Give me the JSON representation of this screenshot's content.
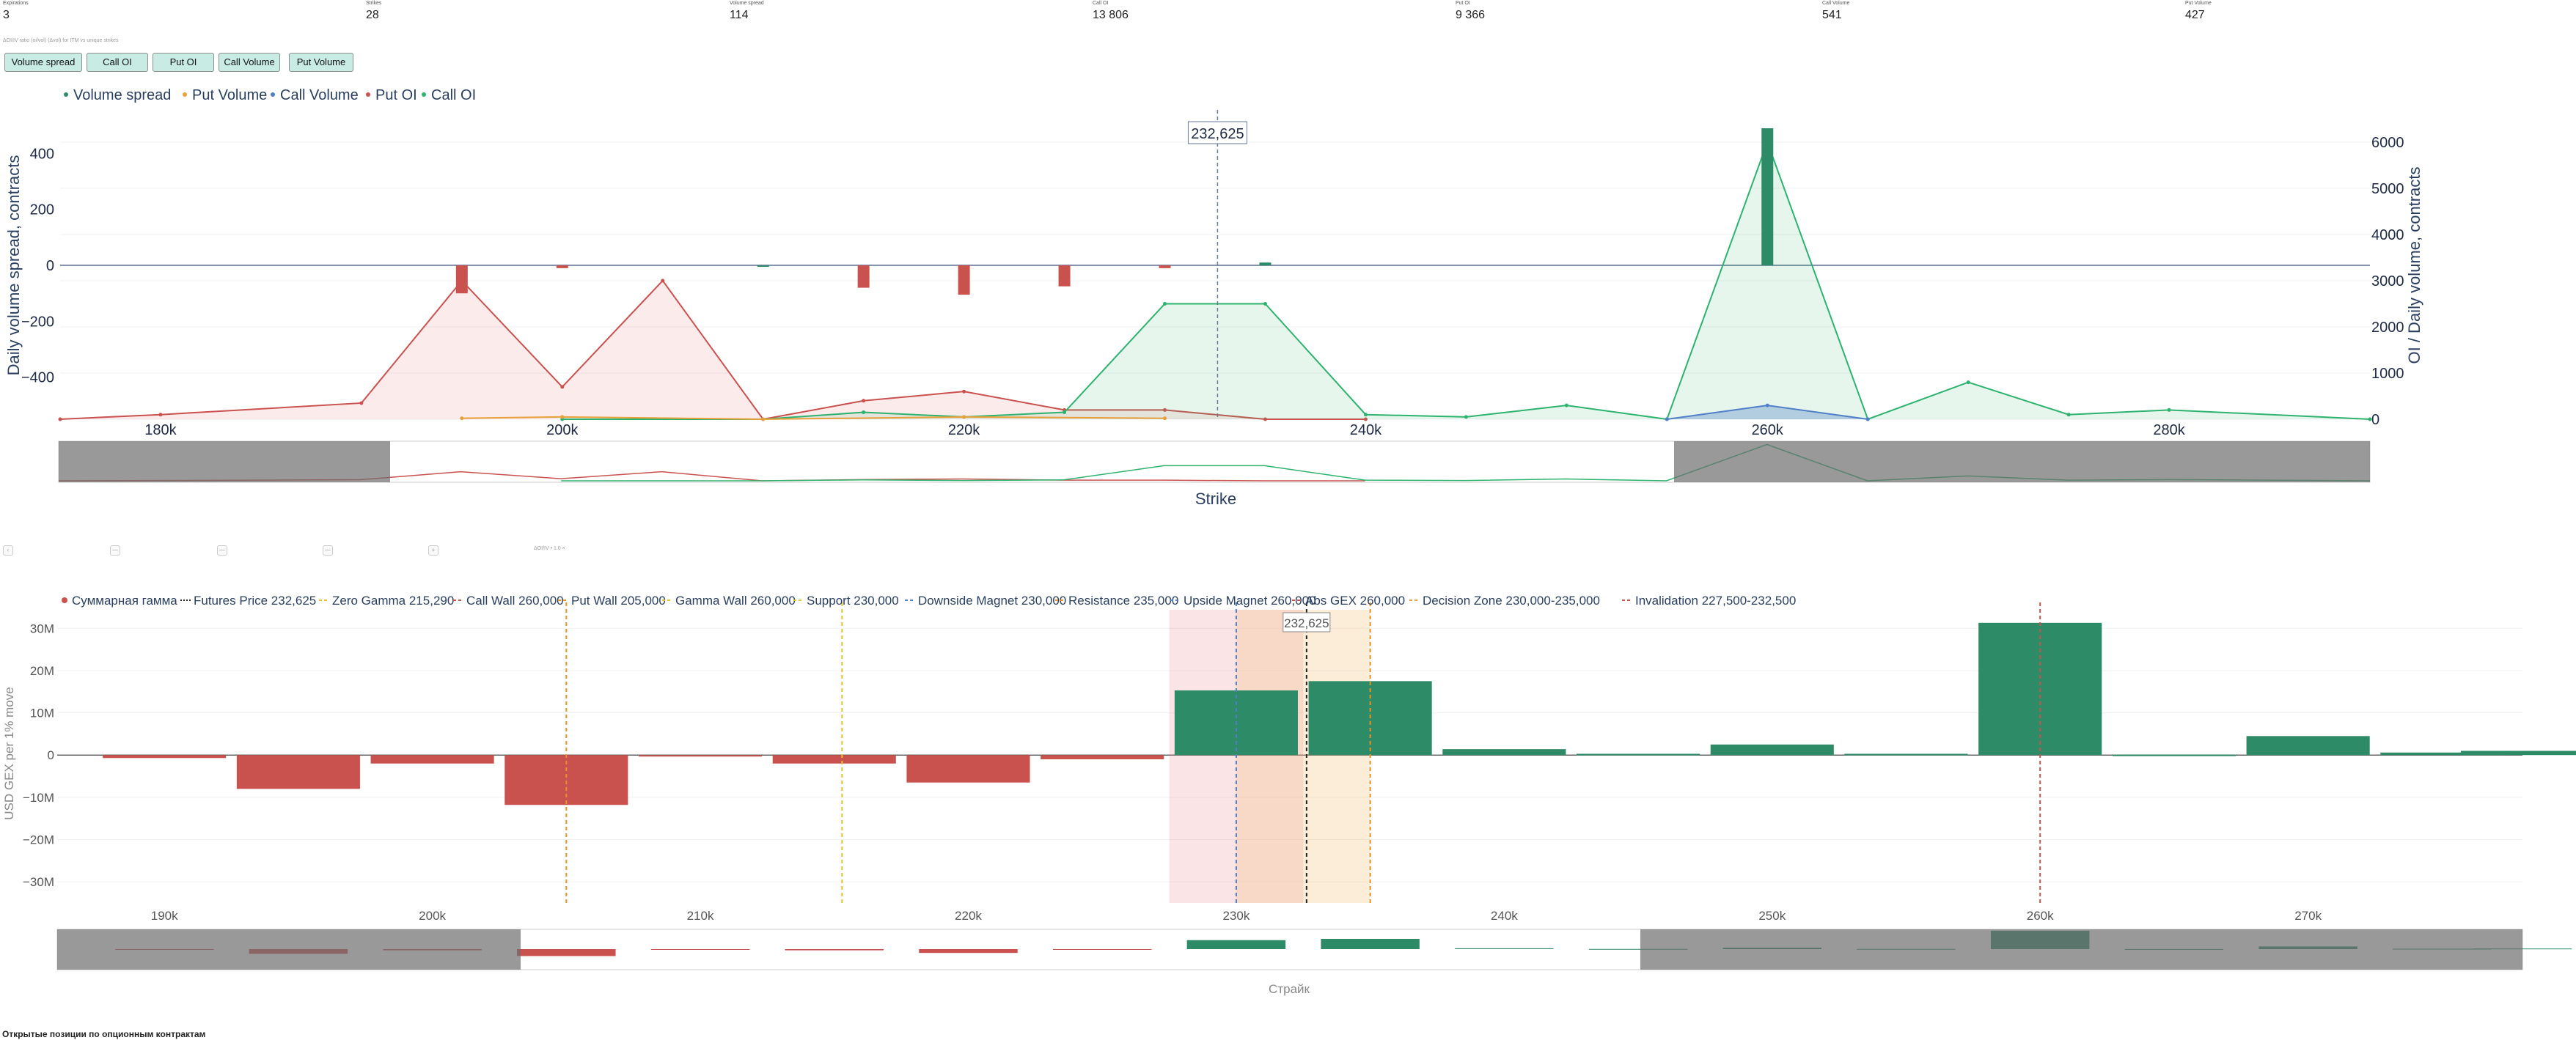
{
  "stats": [
    {
      "label": "Expirations",
      "value": "3"
    },
    {
      "label": "Strikes",
      "value": "28"
    },
    {
      "label": "Volume spread",
      "value": "114"
    },
    {
      "label": "Call OI",
      "value": "13 806"
    },
    {
      "label": "Put OI",
      "value": "9 366"
    },
    {
      "label": "Call Volume",
      "value": "541"
    },
    {
      "label": "Put Volume",
      "value": "427"
    }
  ],
  "note": "ΔOI/IV ratio (oi/vol) (Δvol) for ITM vs unique strikes",
  "buttons": [
    "Volume spread",
    "Call OI",
    "Put OI",
    "Call Volume",
    "Put Volume"
  ],
  "mini_controls": [
    "‹",
    "—",
    "—",
    "—",
    "+"
  ],
  "mini_label": "ΔOI/IV • 1.0 ×",
  "footer_title": "Открытые позиции по опционным контрактам",
  "colors": {
    "green": "#2e8b68",
    "red": "#c9524f",
    "blue": "#4f7fc8",
    "orange": "#e8a13a",
    "light_green": "#2db36f"
  },
  "chart_data": [
    {
      "type": "bar",
      "legend": [
        "Volume spread",
        "Put Volume",
        "Call Volume",
        "Put OI",
        "Call OI"
      ],
      "ylabel": "Daily volume spread, contracts",
      "y2label": "OI / Daily volume, contracts",
      "xlabel": "Strike",
      "ylim": [
        -550,
        490
      ],
      "y2lim": [
        0,
        6300
      ],
      "xlim": [
        175000,
        290000
      ],
      "yticks": [
        {
          "v": 400,
          "t": "400"
        },
        {
          "v": 200,
          "t": "200"
        },
        {
          "v": 0,
          "t": "0"
        },
        {
          "v": -200,
          "t": "−200"
        },
        {
          "v": -400,
          "t": "−400"
        }
      ],
      "y2ticks": [
        {
          "v": 0,
          "t": "0"
        },
        {
          "v": 1000,
          "t": "1000"
        },
        {
          "v": 2000,
          "t": "2000"
        },
        {
          "v": 3000,
          "t": "3000"
        },
        {
          "v": 4000,
          "t": "4000"
        },
        {
          "v": 5000,
          "t": "5000"
        },
        {
          "v": 6000,
          "t": "6000"
        }
      ],
      "xticks": [
        {
          "v": 180000,
          "t": "180k"
        },
        {
          "v": 200000,
          "t": "200k"
        },
        {
          "v": 220000,
          "t": "220k"
        },
        {
          "v": 240000,
          "t": "240k"
        },
        {
          "v": 260000,
          "t": "260k"
        },
        {
          "v": 280000,
          "t": "280k"
        }
      ],
      "spread": [
        {
          "x": 195000,
          "y": -100
        },
        {
          "x": 200000,
          "y": -10
        },
        {
          "x": 210000,
          "y": 0
        },
        {
          "x": 215000,
          "y": -80
        },
        {
          "x": 220000,
          "y": -105
        },
        {
          "x": 225000,
          "y": -75
        },
        {
          "x": 230000,
          "y": -10
        },
        {
          "x": 235000,
          "y": 10
        },
        {
          "x": 260000,
          "y": 490
        }
      ],
      "put_oi": [
        {
          "x": 175000,
          "y": 0
        },
        {
          "x": 180000,
          "y": 100
        },
        {
          "x": 190000,
          "y": 350
        },
        {
          "x": 195000,
          "y": 3000
        },
        {
          "x": 200000,
          "y": 700
        },
        {
          "x": 205000,
          "y": 3000
        },
        {
          "x": 210000,
          "y": 0
        },
        {
          "x": 215000,
          "y": 400
        },
        {
          "x": 220000,
          "y": 600
        },
        {
          "x": 225000,
          "y": 200
        },
        {
          "x": 230000,
          "y": 200
        },
        {
          "x": 235000,
          "y": 0
        },
        {
          "x": 240000,
          "y": 0
        }
      ],
      "call_oi": [
        {
          "x": 200000,
          "y": 0
        },
        {
          "x": 210000,
          "y": 0
        },
        {
          "x": 215000,
          "y": 150
        },
        {
          "x": 220000,
          "y": 50
        },
        {
          "x": 225000,
          "y": 150
        },
        {
          "x": 230000,
          "y": 2500
        },
        {
          "x": 235000,
          "y": 2500
        },
        {
          "x": 240000,
          "y": 100
        },
        {
          "x": 245000,
          "y": 50
        },
        {
          "x": 250000,
          "y": 300
        },
        {
          "x": 255000,
          "y": 0
        },
        {
          "x": 260000,
          "y": 6000
        },
        {
          "x": 265000,
          "y": 0
        },
        {
          "x": 270000,
          "y": 800
        },
        {
          "x": 275000,
          "y": 100
        },
        {
          "x": 280000,
          "y": 200
        },
        {
          "x": 290000,
          "y": 0
        }
      ],
      "call_volume": [
        {
          "x": 255000,
          "y": 0
        },
        {
          "x": 260000,
          "y": 300
        },
        {
          "x": 265000,
          "y": 0
        }
      ],
      "put_volume": [
        {
          "x": 195000,
          "y": 20
        },
        {
          "x": 200000,
          "y": 50
        },
        {
          "x": 210000,
          "y": 0
        },
        {
          "x": 220000,
          "y": 50
        },
        {
          "x": 230000,
          "y": 20
        }
      ],
      "price_marker": {
        "x": 232625,
        "label": "232,625"
      }
    },
    {
      "type": "bar",
      "legend": [
        {
          "name": "Суммарная гамма",
          "style": "dot"
        },
        {
          "name": "Futures Price 232,625",
          "style": "dot-line"
        },
        {
          "name": "Zero Gamma 215,290",
          "style": "dash"
        },
        {
          "name": "Call Wall 260,000",
          "style": "dash"
        },
        {
          "name": "Put Wall 205,000",
          "style": "dash"
        },
        {
          "name": "Gamma Wall 260,000",
          "style": "dash"
        },
        {
          "name": "Support 230,000",
          "style": "dash"
        },
        {
          "name": "Downside Magnet 230,000",
          "style": "dash"
        },
        {
          "name": "Resistance 235,000",
          "style": "dash"
        },
        {
          "name": "Upside Magnet 260,000",
          "style": "dash"
        },
        {
          "name": "Abs GEX 260,000",
          "style": "dash"
        },
        {
          "name": "Decision Zone 230,000-235,000",
          "style": "dash"
        },
        {
          "name": "Invalidation 227,500-232,500",
          "style": "dash"
        }
      ],
      "ylabel": "USD GEX per 1% move",
      "xlabel": "Страйк",
      "ylim": [
        -35,
        33
      ],
      "xlim": [
        186000,
        278000
      ],
      "yticks": [
        {
          "v": 30,
          "t": "30M"
        },
        {
          "v": 20,
          "t": "20M"
        },
        {
          "v": 10,
          "t": "10M"
        },
        {
          "v": 0,
          "t": "0"
        },
        {
          "v": -10,
          "t": "−10M"
        },
        {
          "v": -20,
          "t": "−20M"
        },
        {
          "v": -30,
          "t": "−30M"
        }
      ],
      "xticks": [
        {
          "v": 190000,
          "t": "190k"
        },
        {
          "v": 200000,
          "t": "200k"
        },
        {
          "v": 210000,
          "t": "210k"
        },
        {
          "v": 220000,
          "t": "220k"
        },
        {
          "v": 230000,
          "t": "230k"
        },
        {
          "v": 240000,
          "t": "240k"
        },
        {
          "v": 250000,
          "t": "250k"
        },
        {
          "v": 260000,
          "t": "260k"
        },
        {
          "v": 270000,
          "t": "270k"
        }
      ],
      "bars": [
        {
          "x": 190000,
          "y": -0.7
        },
        {
          "x": 195000,
          "y": -8
        },
        {
          "x": 200000,
          "y": -2
        },
        {
          "x": 205000,
          "y": -11.8
        },
        {
          "x": 210000,
          "y": -0.2
        },
        {
          "x": 215000,
          "y": -2
        },
        {
          "x": 220000,
          "y": -6.5
        },
        {
          "x": 225000,
          "y": -1
        },
        {
          "x": 230000,
          "y": 15.3
        },
        {
          "x": 235000,
          "y": 17.5
        },
        {
          "x": 240000,
          "y": 1.4
        },
        {
          "x": 245000,
          "y": 0.3
        },
        {
          "x": 250000,
          "y": 2.5
        },
        {
          "x": 255000,
          "y": 0.3
        },
        {
          "x": 260000,
          "y": 31.3
        },
        {
          "x": 265000,
          "y": 0.1
        },
        {
          "x": 270000,
          "y": 4.5
        },
        {
          "x": 275000,
          "y": 0.6
        },
        {
          "x": 278000,
          "y": 1
        }
      ],
      "levels": [
        {
          "x": 205000,
          "color": "#e8902a"
        },
        {
          "x": 215290,
          "color": "#e8c02a"
        },
        {
          "x": 230000,
          "color": "#4f7fc8"
        },
        {
          "x": 232625,
          "color": "#222222"
        },
        {
          "x": 235000,
          "color": "#e8902a"
        },
        {
          "x": 260000,
          "color": "#c9524f"
        }
      ],
      "zones": [
        {
          "x0": 227500,
          "x1": 232500,
          "color": "rgba(232,120,130,0.2)"
        },
        {
          "x0": 230000,
          "x1": 235000,
          "color": "rgba(246,190,120,0.28)"
        }
      ],
      "price_marker": {
        "x": 232625,
        "label": "232,625"
      }
    }
  ]
}
